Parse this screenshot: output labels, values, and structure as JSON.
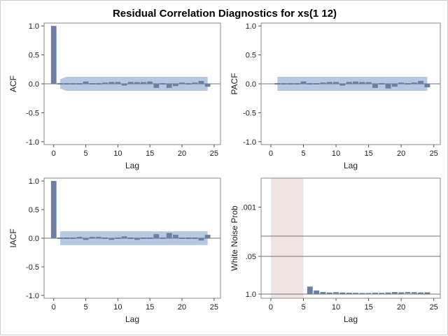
{
  "chart_data": {
    "title": "Residual Correlation Diagnostics for xs(1 12)",
    "panels": [
      {
        "id": "acf",
        "type": "bar",
        "ylabel": "ACF",
        "xlabel": "Lag",
        "xlim": [
          -1.5,
          26
        ],
        "ylim": [
          -1.05,
          1.05
        ],
        "xticks": [
          "0",
          "5",
          "10",
          "15",
          "20",
          "25"
        ],
        "yticks": [
          "1.0",
          "0.5",
          "0.0",
          "-0.5",
          "-1.0"
        ],
        "lags": [
          0,
          1,
          2,
          3,
          4,
          5,
          6,
          7,
          8,
          9,
          10,
          11,
          12,
          13,
          14,
          15,
          16,
          17,
          18,
          19,
          20,
          21,
          22,
          23,
          24
        ],
        "values": [
          1.0,
          0.0,
          0.0,
          0.0,
          -0.02,
          0.04,
          -0.01,
          -0.01,
          0.01,
          0.02,
          0.02,
          -0.03,
          0.02,
          0.03,
          0.03,
          0.04,
          -0.07,
          0.0,
          -0.07,
          -0.04,
          0.01,
          0.0,
          0.01,
          0.05,
          -0.05
        ],
        "band": {
          "lags": [
            1,
            2,
            3,
            24
          ],
          "upper": [
            0.08,
            0.12,
            0.12,
            0.12
          ]
        }
      },
      {
        "id": "pacf",
        "type": "bar",
        "ylabel": "PACF",
        "xlabel": "Lag",
        "xlim": [
          -1.5,
          26
        ],
        "ylim": [
          -1.05,
          1.05
        ],
        "xticks": [
          "0",
          "5",
          "10",
          "15",
          "20",
          "25"
        ],
        "yticks": [
          "1.0",
          "0.5",
          "0.0",
          "-0.5",
          "-1.0"
        ],
        "lags": [
          1,
          2,
          3,
          4,
          5,
          6,
          7,
          8,
          9,
          10,
          11,
          12,
          13,
          14,
          15,
          16,
          17,
          18,
          19,
          20,
          21,
          22,
          23,
          24
        ],
        "values": [
          0.0,
          0.0,
          0.0,
          -0.02,
          0.04,
          -0.01,
          -0.01,
          0.01,
          0.02,
          0.02,
          -0.03,
          0.02,
          0.04,
          0.03,
          0.03,
          -0.07,
          0.0,
          -0.08,
          -0.05,
          0.01,
          0.0,
          0.01,
          0.05,
          -0.06
        ],
        "band": {
          "lags": [
            1,
            24
          ],
          "upper": [
            0.12,
            0.12
          ]
        }
      },
      {
        "id": "iacf",
        "type": "bar",
        "ylabel": "IACF",
        "xlabel": "Lag",
        "xlim": [
          -1.5,
          26
        ],
        "ylim": [
          -1.05,
          1.05
        ],
        "xticks": [
          "0",
          "5",
          "10",
          "15",
          "20",
          "25"
        ],
        "yticks": [
          "1.0",
          "0.5",
          "0.0",
          "-0.5",
          "-1.0"
        ],
        "lags": [
          0,
          1,
          2,
          3,
          4,
          5,
          6,
          7,
          8,
          9,
          10,
          11,
          12,
          13,
          14,
          15,
          16,
          17,
          18,
          19,
          20,
          21,
          22,
          23,
          24
        ],
        "values": [
          1.0,
          0.0,
          0.0,
          0.0,
          0.01,
          -0.03,
          0.01,
          0.01,
          0.0,
          -0.03,
          -0.02,
          0.02,
          0.0,
          -0.03,
          -0.02,
          -0.02,
          0.07,
          0.0,
          0.09,
          0.06,
          -0.01,
          0.0,
          -0.01,
          -0.04,
          0.06
        ],
        "band": {
          "lags": [
            1,
            24
          ],
          "upper": [
            0.12,
            0.12
          ]
        }
      },
      {
        "id": "white-noise",
        "type": "bar",
        "ylabel": "White Noise Prob",
        "xlabel": "Lag",
        "xlim": [
          -1.5,
          26
        ],
        "scale": "log-reversed",
        "ylim": [
          1.0,
          0.0001
        ],
        "xticks": [
          "0",
          "5",
          "10",
          "15",
          "20",
          "25"
        ],
        "yticks": [
          ".001",
          ".05",
          "1.0"
        ],
        "ytick_values": [
          0.001,
          0.05,
          1.0
        ],
        "reference_lines": [
          0.01,
          0.05
        ],
        "shaded_lags": [
          0,
          5
        ],
        "lags": [
          6,
          7,
          8,
          9,
          10,
          11,
          12,
          13,
          14,
          15,
          16,
          17,
          18,
          19,
          20,
          21,
          22,
          23,
          24
        ],
        "values": [
          0.55,
          0.75,
          0.85,
          0.88,
          0.91,
          0.93,
          0.95,
          0.96,
          0.97,
          0.97,
          0.95,
          0.96,
          0.88,
          0.85,
          0.87,
          0.9,
          0.91,
          0.93,
          0.92
        ]
      }
    ]
  }
}
